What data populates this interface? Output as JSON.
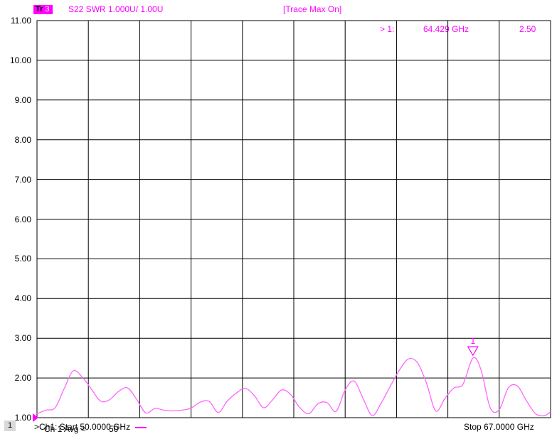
{
  "header": {
    "trace_badge": "Tr",
    "trace_num": "3",
    "trace_desc": "S22 SWR 1.000U/  1.00U",
    "trace_status": "[Trace Max On]"
  },
  "marker_readout": {
    "label": "> 1:",
    "freq": "64.429 GHz",
    "value": "2.50"
  },
  "avg_label": "Ch 1 Avg =",
  "avg_value": "50",
  "footer": {
    "channel_num": "1",
    "start": ">Ch1:  Start  50.0000 GHz",
    "stop": "Stop  67.0000 GHz"
  },
  "colors": {
    "trace": "#ff66ff",
    "grid": "#000000",
    "marker": "#ff00ff"
  },
  "chart_data": {
    "type": "line",
    "title": "",
    "xlabel": "",
    "ylabel": "",
    "xlim": [
      50,
      67
    ],
    "ylim": [
      1.0,
      11.0
    ],
    "grid": true,
    "y_ticks": [
      "11.00",
      "10.00",
      "9.00",
      "8.00",
      "7.00",
      "6.00",
      "5.00",
      "4.00",
      "3.00",
      "2.00",
      "1.00"
    ],
    "series": [
      {
        "x": [
          50.0,
          50.3,
          50.6,
          50.9,
          51.2,
          51.5,
          51.8,
          52.1,
          52.4,
          52.7,
          53.0,
          53.3,
          53.6,
          53.9,
          54.2,
          54.5,
          54.8,
          55.1,
          55.4,
          55.7,
          56.0,
          56.3,
          56.6,
          56.9,
          57.2,
          57.5,
          57.8,
          58.1,
          58.4,
          58.7,
          59.0,
          59.3,
          59.6,
          59.9,
          60.2,
          60.5,
          60.8,
          61.1,
          61.4,
          61.7,
          62.0,
          62.3,
          62.6,
          62.9,
          63.2,
          63.5,
          63.8,
          64.1,
          64.429,
          64.7,
          65.0,
          65.3,
          65.6,
          65.9,
          66.2,
          66.5,
          66.8,
          67.0
        ],
        "y": [
          1.1,
          1.19,
          1.25,
          1.73,
          2.18,
          2.02,
          1.72,
          1.42,
          1.45,
          1.66,
          1.75,
          1.46,
          1.12,
          1.23,
          1.19,
          1.17,
          1.19,
          1.24,
          1.39,
          1.41,
          1.13,
          1.42,
          1.62,
          1.74,
          1.55,
          1.25,
          1.45,
          1.7,
          1.58,
          1.25,
          1.1,
          1.35,
          1.38,
          1.16,
          1.7,
          1.92,
          1.47,
          1.05,
          1.38,
          1.8,
          2.2,
          2.48,
          2.38,
          1.85,
          1.17,
          1.48,
          1.75,
          1.84,
          2.5,
          2.2,
          1.25,
          1.2,
          1.75,
          1.8,
          1.43,
          1.1,
          1.05,
          1.15
        ]
      }
    ],
    "marker": {
      "label": "1",
      "x": 64.429,
      "y": 2.5
    }
  }
}
